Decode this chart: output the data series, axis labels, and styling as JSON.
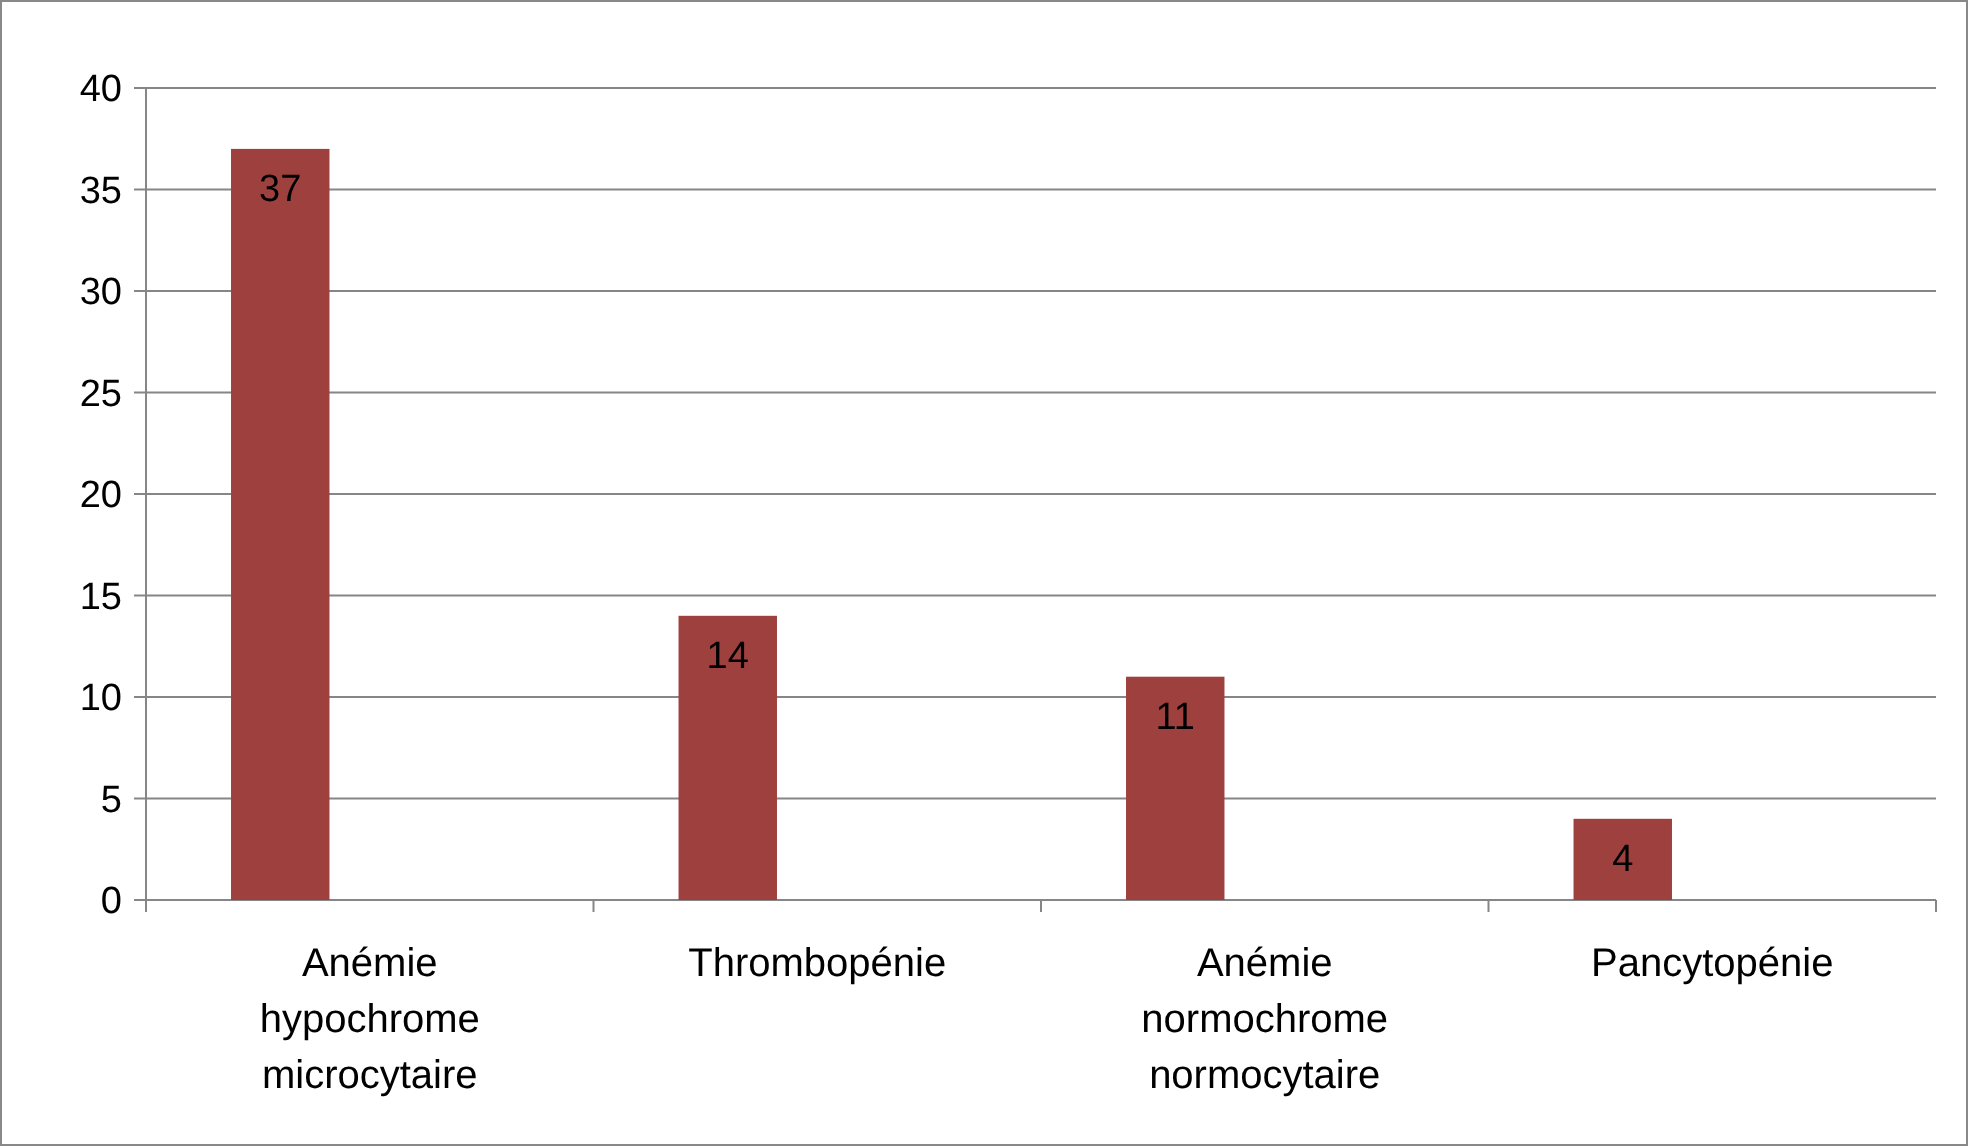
{
  "chart_data": {
    "type": "bar",
    "categories": [
      "Anémie hypochrome microcytaire",
      "Thrombopénie",
      "Anémie normochrome normocytaire",
      "Pancytopénie"
    ],
    "values": [
      37,
      14,
      11,
      4
    ],
    "color": "#9e413e",
    "ylim": [
      0,
      40
    ],
    "yticks": [
      0,
      5,
      10,
      15,
      20,
      25,
      30,
      35,
      40
    ],
    "grid": "y",
    "data_labels": true
  }
}
